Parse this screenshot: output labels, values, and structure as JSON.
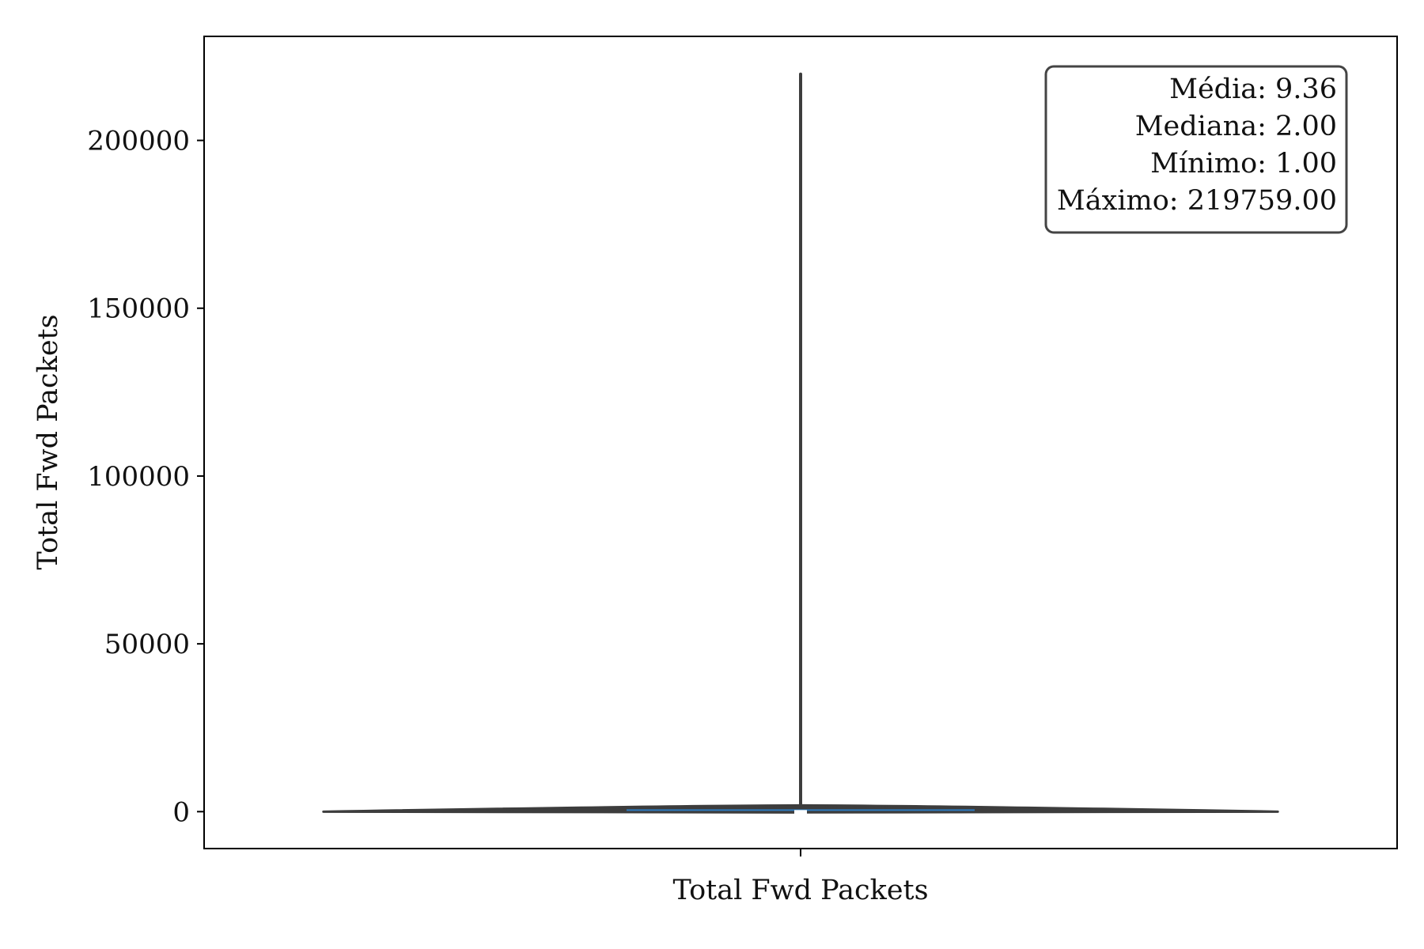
{
  "chart_data": {
    "type": "violin",
    "title": "",
    "xlabel": "Total Fwd Packets",
    "ylabel": "Total Fwd Packets",
    "categories": [
      "Total Fwd Packets"
    ],
    "ylim": [
      -11000,
      231000
    ],
    "yticks": [
      0,
      50000,
      100000,
      150000,
      200000
    ],
    "ytick_labels": [
      "0",
      "50000",
      "100000",
      "150000",
      "200000"
    ],
    "series": [
      {
        "category": "Total Fwd Packets",
        "mean": 9.36,
        "median": 2.0,
        "min": 1.0,
        "max": 219759.0,
        "violin_max_halfwidth": 0.4,
        "box_color": "#2e7bbf"
      }
    ],
    "stats_box": {
      "lines": [
        "Média: 9.36",
        "Mediana: 2.00",
        "Mínimo: 1.00",
        "Máximo: 219759.00"
      ],
      "placement": "top-right"
    },
    "grid": false,
    "colors": {
      "violin_edge": "#3d3d3d",
      "violin_fill": "#3d3d3d",
      "box_color": "#2e7bbf",
      "median_color": "#ffffff",
      "axis_color": "#000000",
      "stats_border": "#444444"
    }
  }
}
